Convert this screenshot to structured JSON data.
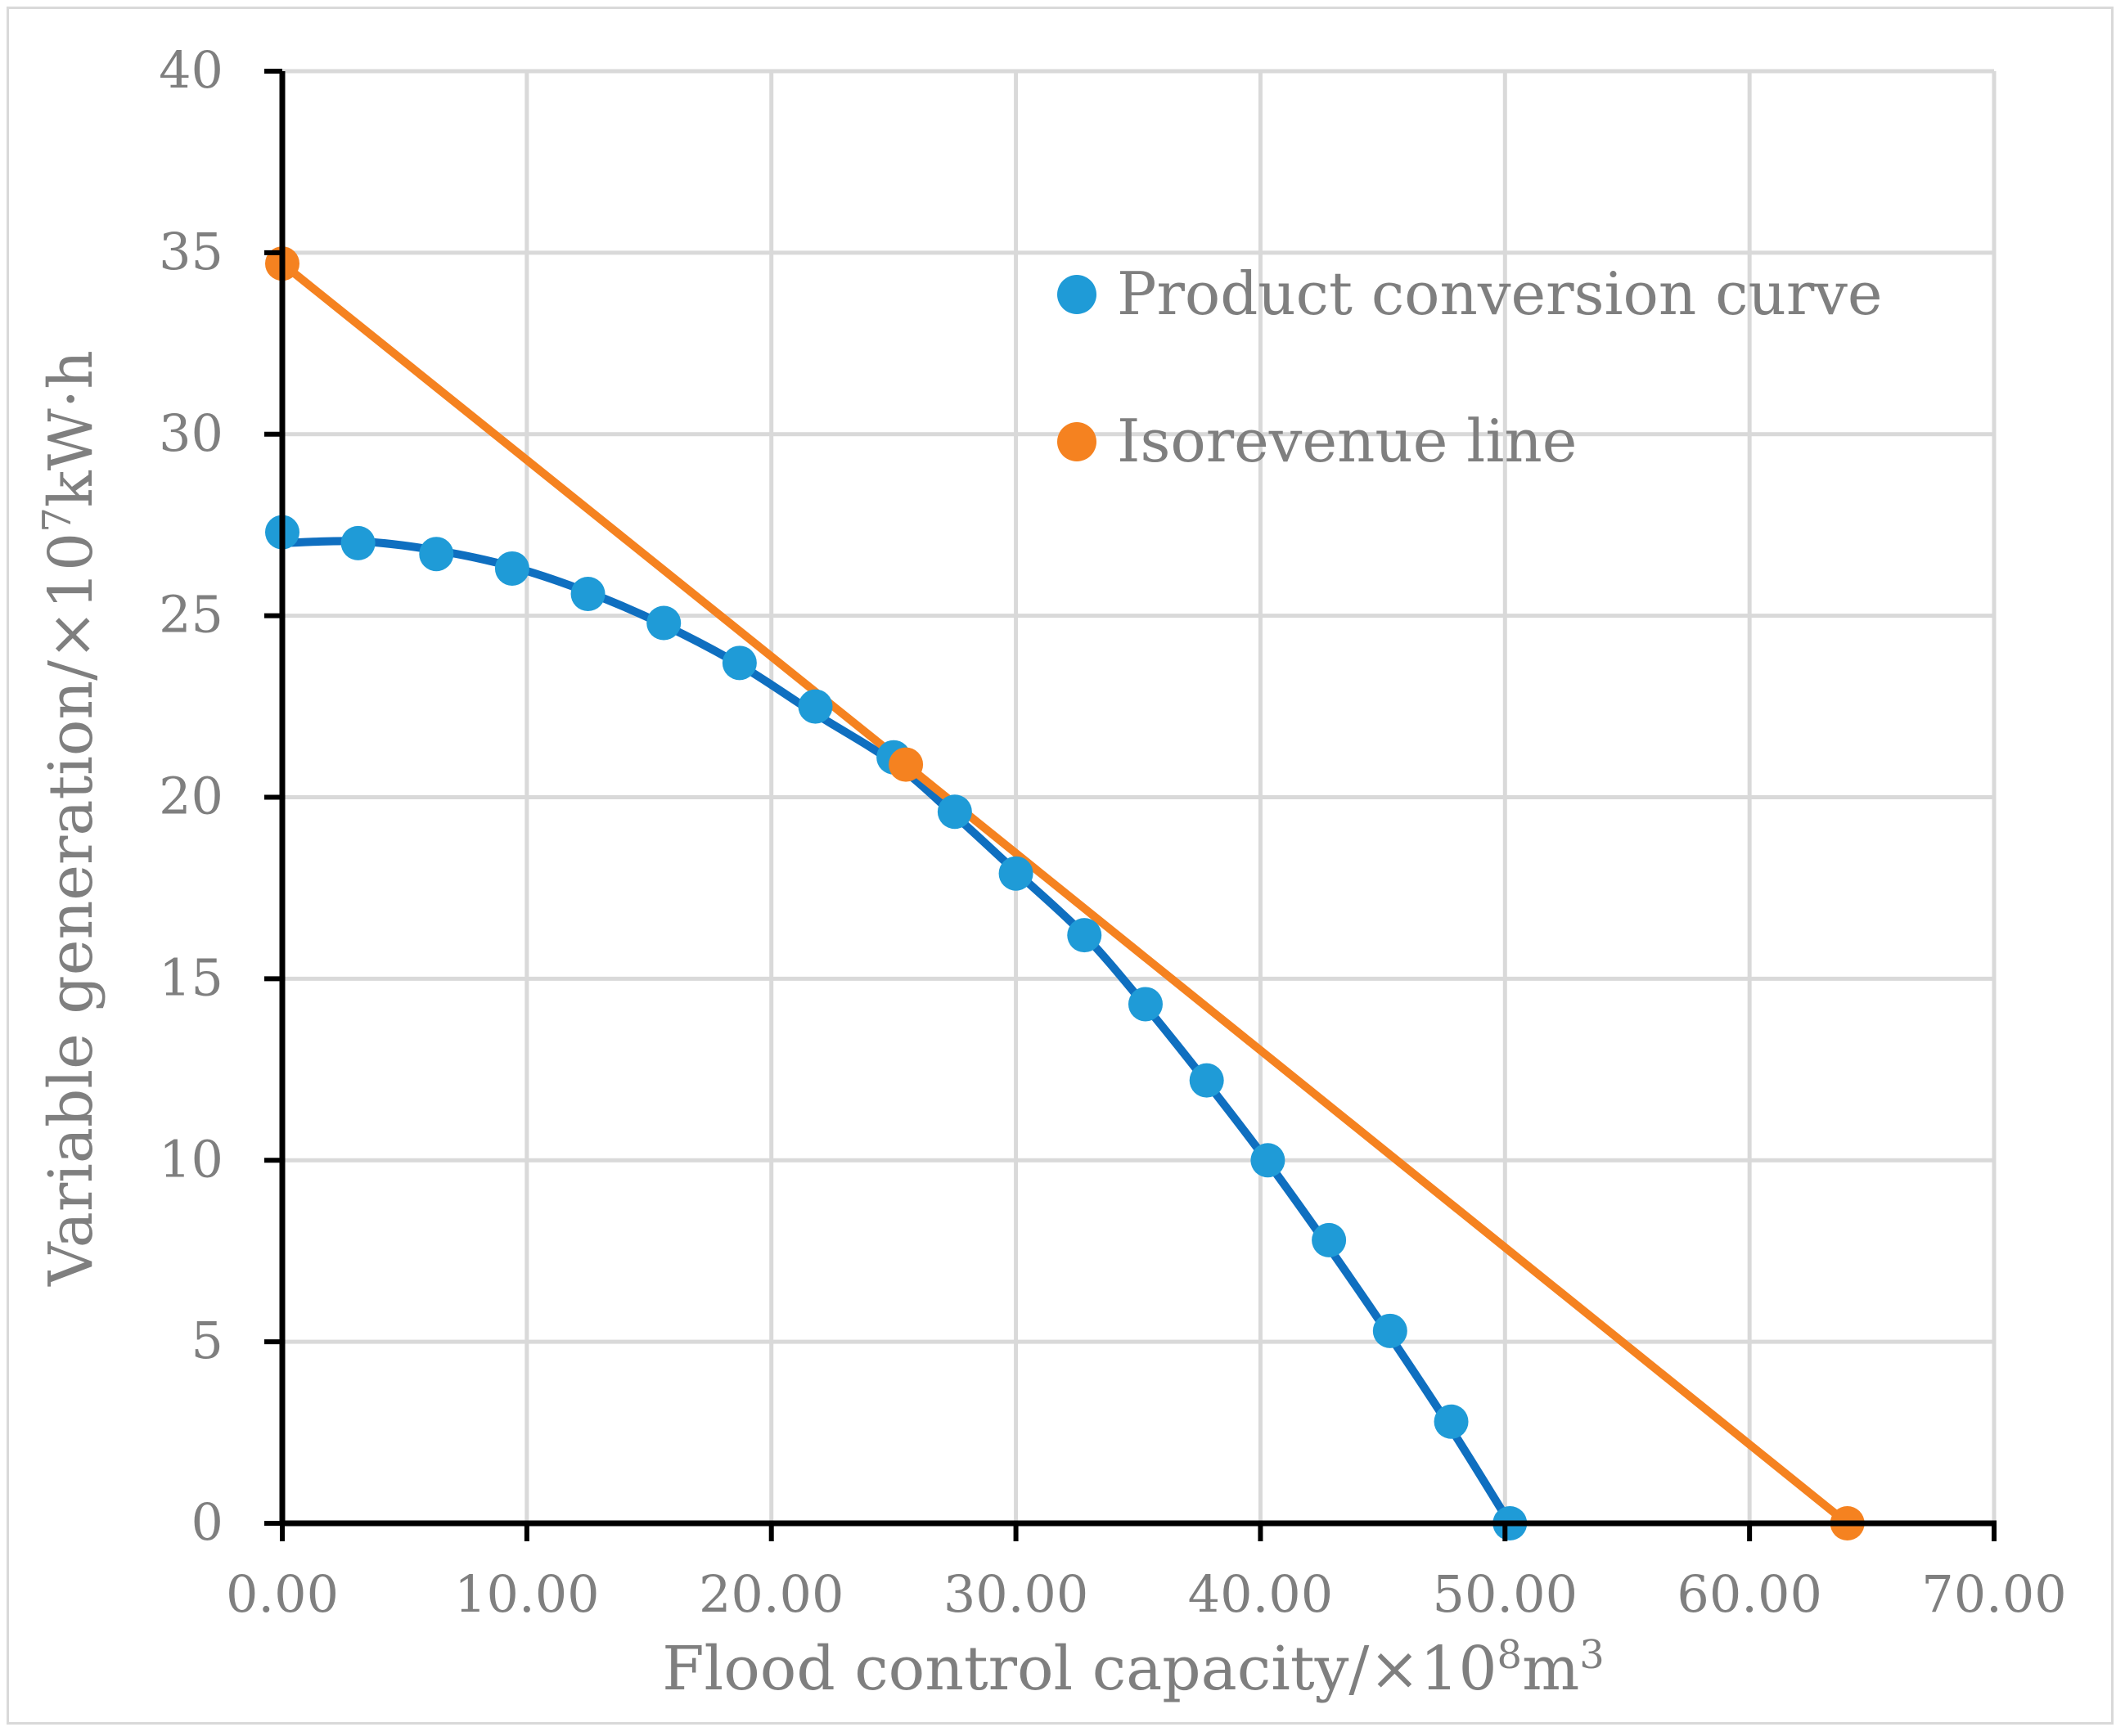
{
  "chart_data": {
    "type": "scatter",
    "xlabel_main": "Flood control capacity/×10",
    "xlabel_exp": "8",
    "xlabel_unit": "m",
    "xlabel_unit_exp": "3",
    "ylabel_main": "Variable generation/×10",
    "ylabel_exp": "7",
    "ylabel_unit": "kW·h",
    "xlim": [
      0,
      70
    ],
    "ylim": [
      0,
      40
    ],
    "x_ticks": [
      0,
      10,
      20,
      30,
      40,
      50,
      60,
      70
    ],
    "x_tick_labels": [
      "0.00",
      "10.00",
      "20.00",
      "30.00",
      "40.00",
      "50.00",
      "60.00",
      "70.00"
    ],
    "y_ticks": [
      0,
      5,
      10,
      15,
      20,
      25,
      30,
      35,
      40
    ],
    "y_tick_labels": [
      "0",
      "5",
      "10",
      "15",
      "20",
      "25",
      "30",
      "35",
      "40"
    ],
    "grid": true,
    "legend_position": "top-right",
    "series": [
      {
        "name": "Product conversion curve",
        "color": "#1f9bd7",
        "line_color": "#0f6fc0",
        "line": "smooth",
        "points": [
          [
            0.0,
            27.3
          ],
          [
            3.1,
            27.0
          ],
          [
            6.3,
            26.7
          ],
          [
            9.4,
            26.3
          ],
          [
            12.5,
            25.6
          ],
          [
            15.6,
            24.8
          ],
          [
            18.7,
            23.7
          ],
          [
            21.8,
            22.5
          ],
          [
            25.0,
            21.1
          ],
          [
            27.5,
            19.6
          ],
          [
            30.0,
            17.9
          ],
          [
            32.8,
            16.2
          ],
          [
            35.3,
            14.3
          ],
          [
            37.8,
            12.2
          ],
          [
            40.3,
            10.0
          ],
          [
            42.8,
            7.8
          ],
          [
            45.3,
            5.3
          ],
          [
            47.8,
            2.8
          ],
          [
            50.2,
            0.0
          ]
        ],
        "curve": [
          [
            0.0,
            27.0
          ],
          [
            3.1,
            27.05
          ],
          [
            6.3,
            26.8
          ],
          [
            9.4,
            26.35
          ],
          [
            12.5,
            25.65
          ],
          [
            15.6,
            24.75
          ],
          [
            18.7,
            23.65
          ],
          [
            21.8,
            22.3
          ],
          [
            25.0,
            20.95
          ],
          [
            27.5,
            19.5
          ],
          [
            30.0,
            17.95
          ],
          [
            32.8,
            16.2
          ],
          [
            35.3,
            14.25
          ],
          [
            37.8,
            12.15
          ],
          [
            40.3,
            9.95
          ],
          [
            42.8,
            7.6
          ],
          [
            45.3,
            5.15
          ],
          [
            47.8,
            2.6
          ],
          [
            50.2,
            0.0
          ]
        ]
      },
      {
        "name": "Isorevenue line",
        "color": "#f58220",
        "line_color": "#f58220",
        "line": "straight",
        "points": [
          [
            0.0,
            34.7
          ],
          [
            25.5,
            20.9
          ],
          [
            64.0,
            0.0
          ]
        ]
      }
    ]
  }
}
